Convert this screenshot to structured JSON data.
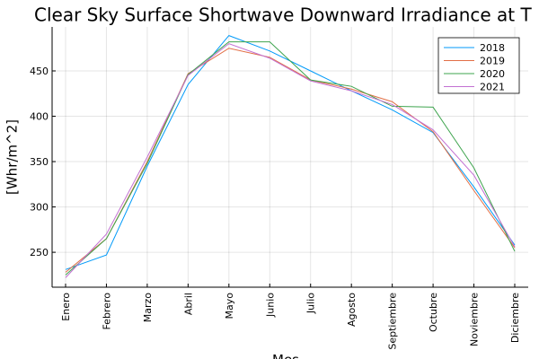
{
  "chart_data": {
    "type": "line",
    "title": "Clear Sky Surface Shortwave Downward Irradiance at T",
    "x_label": "Mes",
    "y_label": "[Whr/m^2]",
    "categories": [
      "Enero",
      "Febrero",
      "Marzo",
      "Abril",
      "Mayo",
      "Junio",
      "Julio",
      "Agosto",
      "Septiembre",
      "Octubre",
      "Noviembre",
      "Diciembre"
    ],
    "series": [
      {
        "name": "2018",
        "color": "#009af9",
        "values": [
          231,
          247,
          345,
          435,
          489,
          472,
          450,
          428,
          407,
          382,
          322,
          258
        ]
      },
      {
        "name": "2019",
        "color": "#e26f46",
        "values": [
          228,
          265,
          350,
          447,
          475,
          465,
          440,
          430,
          416,
          383,
          318,
          255
        ]
      },
      {
        "name": "2020",
        "color": "#3ea44e",
        "values": [
          225,
          265,
          348,
          446,
          482,
          482,
          440,
          433,
          411,
          410,
          343,
          251
        ]
      },
      {
        "name": "2021",
        "color": "#c271d2",
        "values": [
          222,
          270,
          355,
          445,
          480,
          464,
          439,
          428,
          413,
          385,
          335,
          256
        ]
      }
    ],
    "ylim": [
      211.5,
      498.5
    ],
    "yticks": [
      250,
      300,
      350,
      400,
      450
    ],
    "grid": true,
    "legend": "top-right"
  }
}
